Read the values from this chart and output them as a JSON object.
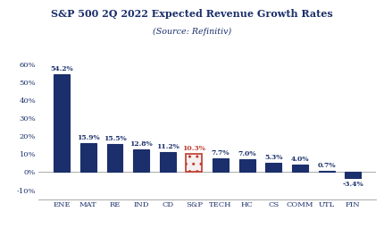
{
  "title": "S&P 500 2Q 2022 Expected Revenue Growth Rates",
  "subtitle": "(Source: Refinitiv)",
  "categories": [
    "ENE",
    "MAT",
    "RE",
    "IND",
    "CD",
    "S&P",
    "TECH",
    "HC",
    "CS",
    "COMM",
    "UTL",
    "FIN"
  ],
  "values": [
    54.2,
    15.9,
    15.5,
    12.8,
    11.2,
    10.3,
    7.7,
    7.0,
    5.3,
    4.0,
    0.7,
    -3.4
  ],
  "bar_colors": [
    "#1a2f6b",
    "#1a2f6b",
    "#1a2f6b",
    "#1a2f6b",
    "#1a2f6b",
    "#f5f0f0",
    "#1a2f6b",
    "#1a2f6b",
    "#1a2f6b",
    "#1a2f6b",
    "#1a2f6b",
    "#1a2f6b"
  ],
  "bar_edge_colors": [
    "#1a2f6b",
    "#1a2f6b",
    "#1a2f6b",
    "#1a2f6b",
    "#1a2f6b",
    "#c0392b",
    "#1a2f6b",
    "#1a2f6b",
    "#1a2f6b",
    "#1a2f6b",
    "#1a2f6b",
    "#1a2f6b"
  ],
  "label_colors": [
    "#1a2f6b",
    "#1a2f6b",
    "#1a2f6b",
    "#1a2f6b",
    "#1a2f6b",
    "#c0392b",
    "#1a2f6b",
    "#1a2f6b",
    "#1a2f6b",
    "#1a2f6b",
    "#1a2f6b",
    "#1a2f6b"
  ],
  "ylim": [
    -15,
    65
  ],
  "yticks": [
    -10,
    0,
    10,
    20,
    30,
    40,
    50,
    60
  ],
  "background_color": "#ffffff",
  "title_color": "#1a2f6b",
  "axis_color": "#888888",
  "tick_color": "#1a2f6b",
  "sp_hatch": "....",
  "sp_hatch_color": "#c0392b"
}
